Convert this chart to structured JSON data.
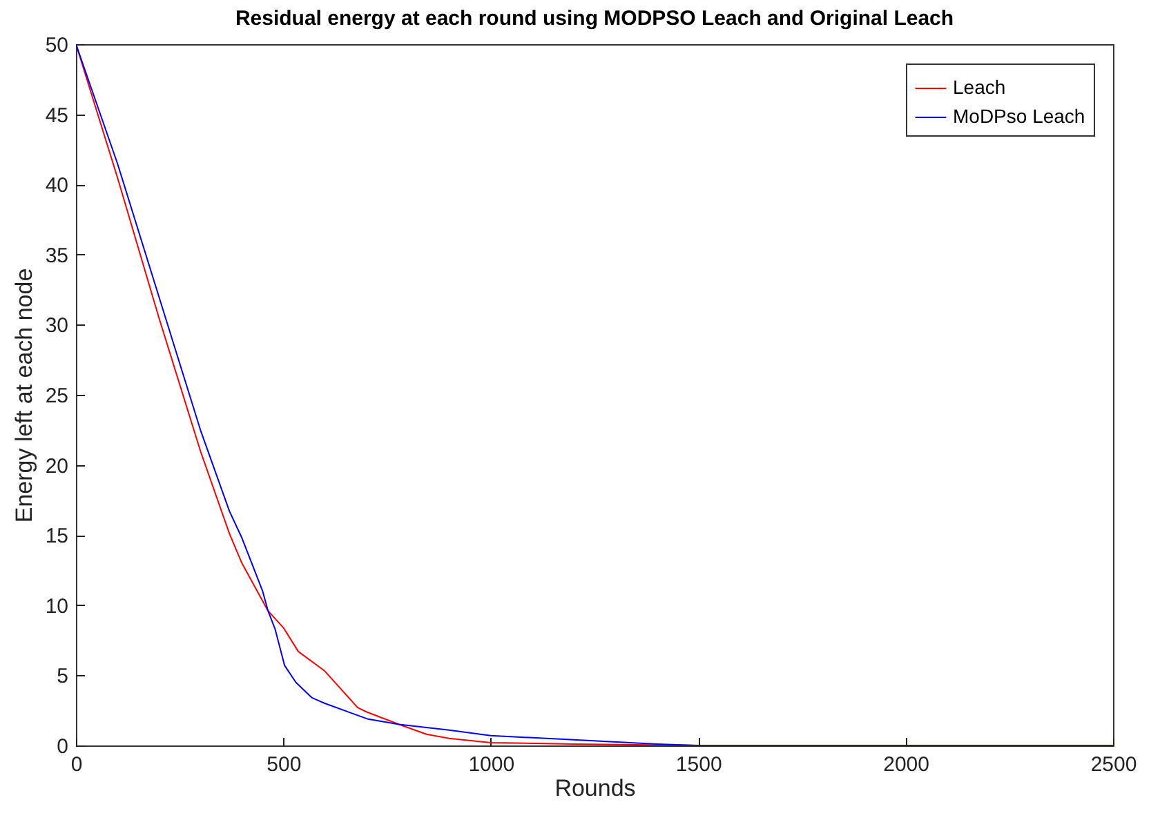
{
  "chart_data": {
    "type": "line",
    "title": "Residual energy at each round using MODPSO Leach and Original Leach",
    "xlabel": "Rounds",
    "ylabel": "Energy left at each node",
    "xlim": [
      0,
      2500
    ],
    "ylim": [
      0,
      50
    ],
    "xticks": [
      0,
      500,
      1000,
      1500,
      2000,
      2500
    ],
    "yticks": [
      0,
      5,
      10,
      15,
      20,
      25,
      30,
      35,
      40,
      45,
      50
    ],
    "grid": false,
    "legend": "top right",
    "series": [
      {
        "name": "Leach",
        "color": "#ff0000",
        "x": [
          0,
          100,
          200,
          300,
          370,
          400,
          463,
          500,
          536,
          600,
          679,
          700,
          779,
          845,
          900,
          1000,
          1200,
          1500,
          2000,
          2500
        ],
        "values": [
          50,
          40.5,
          30.5,
          21,
          15.1,
          13,
          9.6,
          8.4,
          6.7,
          5.3,
          2.7,
          2.4,
          1.5,
          0.8,
          0.5,
          0.2,
          0.1,
          0,
          0,
          0
        ]
      },
      {
        "name": "MoDPso Leach",
        "color": "#0000ff",
        "x": [
          0,
          100,
          200,
          300,
          370,
          400,
          450,
          463,
          480,
          503,
          530,
          569,
          600,
          702,
          779,
          900,
          1000,
          1200,
          1400,
          1500,
          2000,
          2500
        ],
        "values": [
          50,
          41.5,
          32,
          22.5,
          16.7,
          14.8,
          11,
          9.6,
          8.3,
          5.7,
          4.5,
          3.4,
          3,
          1.9,
          1.5,
          1.1,
          0.7,
          0.4,
          0.1,
          0,
          0,
          0
        ]
      }
    ]
  }
}
